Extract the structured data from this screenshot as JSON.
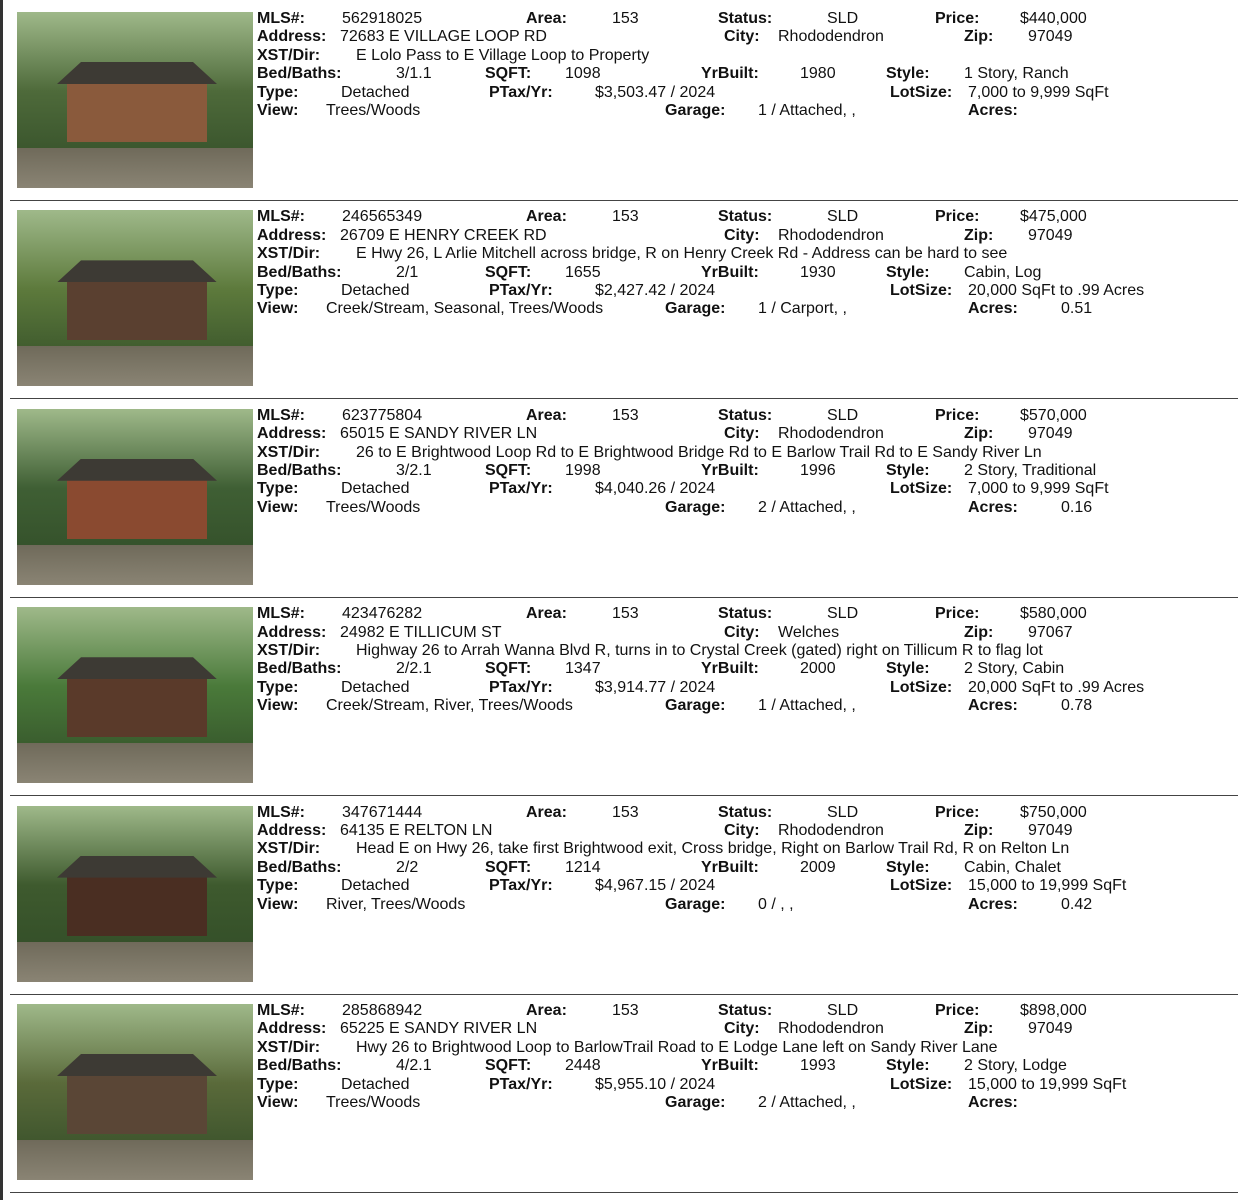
{
  "labels": {
    "mls": "MLS#:",
    "area": "Area:",
    "status": "Status:",
    "price": "Price:",
    "address": "Address:",
    "city": "City:",
    "zip": "Zip:",
    "xst": "XST/Dir:",
    "bedbaths": "Bed/Baths:",
    "sqft": "SQFT:",
    "yrbuilt": "YrBuilt:",
    "style": "Style:",
    "type": "Type:",
    "ptax": "PTax/Yr:",
    "lotsize": "LotSize:",
    "view": "View:",
    "garage": "Garage:",
    "acres": "Acres:"
  },
  "listings": [
    {
      "mls": "562918025",
      "area": "153",
      "status": "SLD",
      "price": "$440,000",
      "address": "72683 E VILLAGE LOOP RD",
      "city": "Rhododendron",
      "zip": "97049",
      "xst": "E Lolo Pass to E Village Loop to Property",
      "bedbaths": "3/1.1",
      "sqft": "1098",
      "yrbuilt": "1980",
      "style": "1 Story, Ranch",
      "type": "Detached",
      "ptax": "$3,503.47 / 2024",
      "lotsize": "7,000 to 9,999 SqFt",
      "view": "Trees/Woods",
      "garage": "1 / Attached, ,",
      "acres": ""
    },
    {
      "mls": "246565349",
      "area": "153",
      "status": "SLD",
      "price": "$475,000",
      "address": "26709 E HENRY CREEK RD",
      "city": "Rhododendron",
      "zip": "97049",
      "xst": "E Hwy 26, L Arlie Mitchell across bridge, R on Henry Creek Rd - Address can be hard to see",
      "bedbaths": "2/1",
      "sqft": "1655",
      "yrbuilt": "1930",
      "style": "Cabin, Log",
      "type": "Detached",
      "ptax": "$2,427.42 / 2024",
      "lotsize": "20,000 SqFt to .99 Acres",
      "view": "Creek/Stream, Seasonal, Trees/Woods",
      "garage": "1 / Carport, ,",
      "acres": "0.51"
    },
    {
      "mls": "623775804",
      "area": "153",
      "status": "SLD",
      "price": "$570,000",
      "address": "65015 E SANDY RIVER LN",
      "city": "Rhododendron",
      "zip": "97049",
      "xst": "26 to E Brightwood Loop Rd to E Brightwood Bridge Rd to E Barlow Trail Rd to E Sandy River Ln",
      "bedbaths": "3/2.1",
      "sqft": "1998",
      "yrbuilt": "1996",
      "style": "2 Story, Traditional",
      "type": "Detached",
      "ptax": "$4,040.26 / 2024",
      "lotsize": "7,000 to 9,999 SqFt",
      "view": "Trees/Woods",
      "garage": "2 / Attached, ,",
      "acres": "0.16"
    },
    {
      "mls": "423476282",
      "area": "153",
      "status": "SLD",
      "price": "$580,000",
      "address": "24982 E TILLICUM ST",
      "city": "Welches",
      "zip": "97067",
      "xst": "Highway 26 to Arrah Wanna Blvd R, turns in to Crystal Creek (gated) right on Tillicum R to flag lot",
      "bedbaths": "2/2.1",
      "sqft": "1347",
      "yrbuilt": "2000",
      "style": "2 Story, Cabin",
      "type": "Detached",
      "ptax": "$3,914.77 / 2024",
      "lotsize": "20,000 SqFt to .99 Acres",
      "view": "Creek/Stream, River, Trees/Woods",
      "garage": "1 / Attached, ,",
      "acres": "0.78"
    },
    {
      "mls": "347671444",
      "area": "153",
      "status": "SLD",
      "price": "$750,000",
      "address": "64135 E RELTON LN",
      "city": "Rhododendron",
      "zip": "97049",
      "xst": "Head E on Hwy 26, take first Brightwood exit, Cross bridge, Right on Barlow Trail Rd, R on Relton Ln",
      "bedbaths": "2/2",
      "sqft": "1214",
      "yrbuilt": "2009",
      "style": "Cabin, Chalet",
      "type": "Detached",
      "ptax": "$4,967.15 / 2024",
      "lotsize": "15,000 to 19,999 SqFt",
      "view": "River, Trees/Woods",
      "garage": "0 / , ,",
      "acres": "0.42"
    },
    {
      "mls": "285868942",
      "area": "153",
      "status": "SLD",
      "price": "$898,000",
      "address": "65225 E SANDY RIVER LN",
      "city": "Rhododendron",
      "zip": "97049",
      "xst": "Hwy 26 to Brightwood Loop to BarlowTrail Road to E Lodge Lane left on Sandy River Lane",
      "bedbaths": "4/2.1",
      "sqft": "2448",
      "yrbuilt": "1993",
      "style": "2 Story, Lodge",
      "type": "Detached",
      "ptax": "$5,955.10 / 2024",
      "lotsize": "15,000 to 19,999 SqFt",
      "view": "Trees/Woods",
      "garage": "2 / Attached, ,",
      "acres": ""
    }
  ],
  "colors": {
    "house": [
      "#8a5a3c",
      "#5a4030",
      "#8a4a30",
      "#5a3a2a",
      "#4a2e22",
      "#5a4636"
    ],
    "foliage": [
      "#4e6a3a",
      "#5d7a3c",
      "#3f5f34",
      "#4a7a3a",
      "#3e5a2e",
      "#5a6a3a"
    ]
  }
}
